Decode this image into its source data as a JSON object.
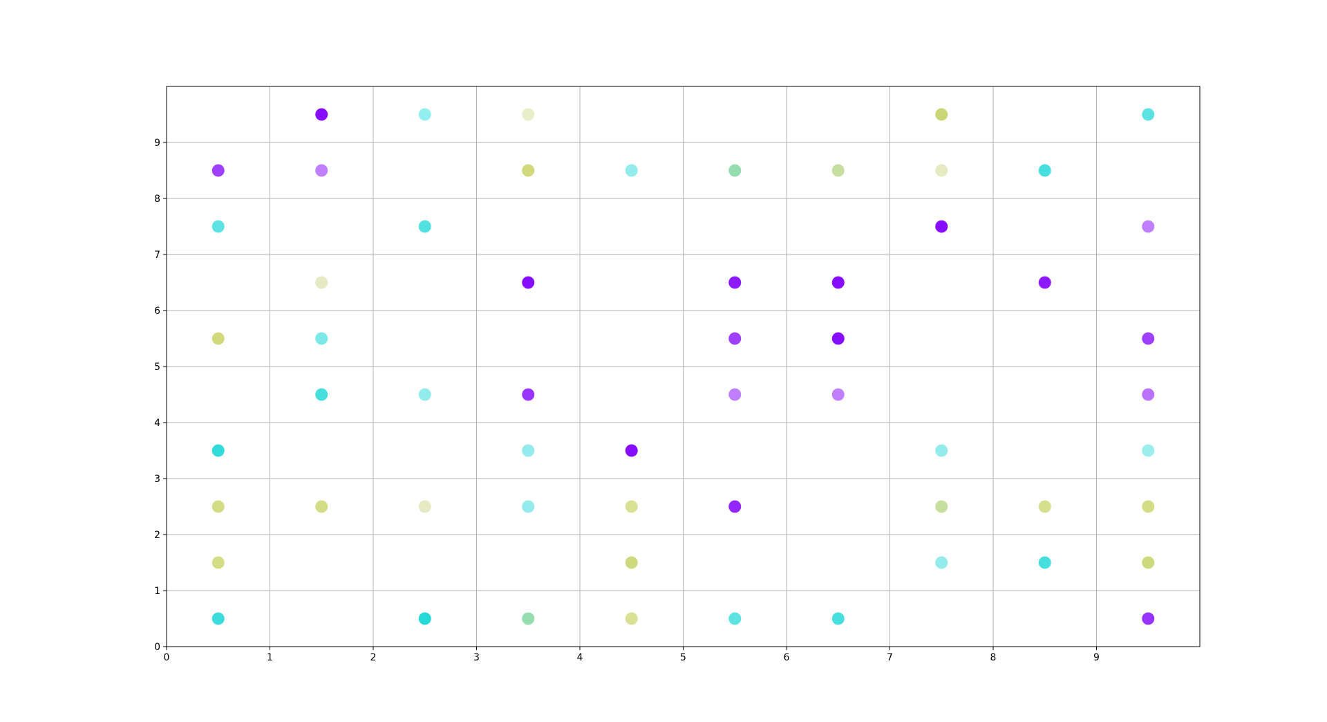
{
  "chart_data": {
    "type": "scatter",
    "title": "",
    "xlabel": "",
    "ylabel": "",
    "xlim": [
      0,
      10
    ],
    "ylim": [
      0,
      10
    ],
    "grid": true,
    "x_ticks": [
      "0",
      "1",
      "2",
      "3",
      "4",
      "5",
      "6",
      "7",
      "8",
      "9"
    ],
    "y_ticks": [
      "0",
      "1",
      "2",
      "3",
      "4",
      "5",
      "6",
      "7",
      "8",
      "9"
    ],
    "points": [
      {
        "x": 1.5,
        "y": 9.5,
        "color": "#8000ff",
        "alpha": 0.95
      },
      {
        "x": 2.5,
        "y": 9.5,
        "color": "#27e0e0",
        "alpha": 0.5
      },
      {
        "x": 3.5,
        "y": 9.5,
        "color": "#c8d47a",
        "alpha": 0.4
      },
      {
        "x": 7.5,
        "y": 9.5,
        "color": "#c4d266",
        "alpha": 0.9
      },
      {
        "x": 9.5,
        "y": 9.5,
        "color": "#27d8d8",
        "alpha": 0.75
      },
      {
        "x": 0.5,
        "y": 8.5,
        "color": "#8000ff",
        "alpha": 0.75
      },
      {
        "x": 1.5,
        "y": 8.5,
        "color": "#8000ff",
        "alpha": 0.5
      },
      {
        "x": 3.5,
        "y": 8.5,
        "color": "#c8d466",
        "alpha": 0.85
      },
      {
        "x": 4.5,
        "y": 8.5,
        "color": "#27d8d8",
        "alpha": 0.5
      },
      {
        "x": 5.5,
        "y": 8.5,
        "color": "#7ad49a",
        "alpha": 0.8
      },
      {
        "x": 6.5,
        "y": 8.5,
        "color": "#b8d686",
        "alpha": 0.8
      },
      {
        "x": 7.5,
        "y": 8.5,
        "color": "#d4dc9a",
        "alpha": 0.6
      },
      {
        "x": 8.5,
        "y": 8.5,
        "color": "#27d8d8",
        "alpha": 0.85
      },
      {
        "x": 0.5,
        "y": 7.5,
        "color": "#27d8d8",
        "alpha": 0.75
      },
      {
        "x": 2.5,
        "y": 7.5,
        "color": "#27d8d8",
        "alpha": 0.8
      },
      {
        "x": 7.5,
        "y": 7.5,
        "color": "#8000ff",
        "alpha": 0.95
      },
      {
        "x": 9.5,
        "y": 7.5,
        "color": "#8000ff",
        "alpha": 0.5
      },
      {
        "x": 1.5,
        "y": 6.5,
        "color": "#d4dc9a",
        "alpha": 0.6
      },
      {
        "x": 3.5,
        "y": 6.5,
        "color": "#8000ff",
        "alpha": 0.95
      },
      {
        "x": 5.5,
        "y": 6.5,
        "color": "#8000ff",
        "alpha": 0.9
      },
      {
        "x": 6.5,
        "y": 6.5,
        "color": "#8000ff",
        "alpha": 0.95
      },
      {
        "x": 8.5,
        "y": 6.5,
        "color": "#8000ff",
        "alpha": 0.9
      },
      {
        "x": 0.5,
        "y": 5.5,
        "color": "#c8d466",
        "alpha": 0.85
      },
      {
        "x": 1.5,
        "y": 5.5,
        "color": "#27d8d8",
        "alpha": 0.6
      },
      {
        "x": 5.5,
        "y": 5.5,
        "color": "#8000ff",
        "alpha": 0.75
      },
      {
        "x": 6.5,
        "y": 5.5,
        "color": "#8000ff",
        "alpha": 0.95
      },
      {
        "x": 9.5,
        "y": 5.5,
        "color": "#8000ff",
        "alpha": 0.75
      },
      {
        "x": 1.5,
        "y": 4.5,
        "color": "#27d8d8",
        "alpha": 0.85
      },
      {
        "x": 2.5,
        "y": 4.5,
        "color": "#27d8d8",
        "alpha": 0.5
      },
      {
        "x": 3.5,
        "y": 4.5,
        "color": "#8000ff",
        "alpha": 0.8
      },
      {
        "x": 5.5,
        "y": 4.5,
        "color": "#8000ff",
        "alpha": 0.5
      },
      {
        "x": 6.5,
        "y": 4.5,
        "color": "#8000ff",
        "alpha": 0.5
      },
      {
        "x": 9.5,
        "y": 4.5,
        "color": "#8000ff",
        "alpha": 0.55
      },
      {
        "x": 0.5,
        "y": 3.5,
        "color": "#27d8d8",
        "alpha": 0.95
      },
      {
        "x": 3.5,
        "y": 3.5,
        "color": "#27d8d8",
        "alpha": 0.5
      },
      {
        "x": 4.5,
        "y": 3.5,
        "color": "#8000ff",
        "alpha": 0.95
      },
      {
        "x": 7.5,
        "y": 3.5,
        "color": "#27d8d8",
        "alpha": 0.5
      },
      {
        "x": 9.5,
        "y": 3.5,
        "color": "#27d8d8",
        "alpha": 0.45
      },
      {
        "x": 0.5,
        "y": 2.5,
        "color": "#c8d466",
        "alpha": 0.8
      },
      {
        "x": 1.5,
        "y": 2.5,
        "color": "#c8d466",
        "alpha": 0.8
      },
      {
        "x": 2.5,
        "y": 2.5,
        "color": "#d4dc9a",
        "alpha": 0.6
      },
      {
        "x": 3.5,
        "y": 2.5,
        "color": "#27d8d8",
        "alpha": 0.5
      },
      {
        "x": 4.5,
        "y": 2.5,
        "color": "#c8d466",
        "alpha": 0.7
      },
      {
        "x": 5.5,
        "y": 2.5,
        "color": "#8000ff",
        "alpha": 0.85
      },
      {
        "x": 7.5,
        "y": 2.5,
        "color": "#b8d686",
        "alpha": 0.8
      },
      {
        "x": 8.5,
        "y": 2.5,
        "color": "#c8d466",
        "alpha": 0.75
      },
      {
        "x": 9.5,
        "y": 2.5,
        "color": "#c8d466",
        "alpha": 0.8
      },
      {
        "x": 0.5,
        "y": 1.5,
        "color": "#c8d466",
        "alpha": 0.8
      },
      {
        "x": 4.5,
        "y": 1.5,
        "color": "#c4d266",
        "alpha": 0.85
      },
      {
        "x": 7.5,
        "y": 1.5,
        "color": "#27d8d8",
        "alpha": 0.5
      },
      {
        "x": 8.5,
        "y": 1.5,
        "color": "#27d8d8",
        "alpha": 0.85
      },
      {
        "x": 9.5,
        "y": 1.5,
        "color": "#c4d266",
        "alpha": 0.85
      },
      {
        "x": 0.5,
        "y": 0.5,
        "color": "#27d8d8",
        "alpha": 0.9
      },
      {
        "x": 2.5,
        "y": 0.5,
        "color": "#27d8d8",
        "alpha": 1.0
      },
      {
        "x": 3.5,
        "y": 0.5,
        "color": "#7ad49a",
        "alpha": 0.8
      },
      {
        "x": 4.5,
        "y": 0.5,
        "color": "#c8d466",
        "alpha": 0.7
      },
      {
        "x": 5.5,
        "y": 0.5,
        "color": "#27d8d8",
        "alpha": 0.75
      },
      {
        "x": 6.5,
        "y": 0.5,
        "color": "#27d8d8",
        "alpha": 0.85
      },
      {
        "x": 9.5,
        "y": 0.5,
        "color": "#8000ff",
        "alpha": 0.8
      }
    ],
    "colors": {
      "grid": "#b0b0b0",
      "axes": "#000000",
      "purple": "#8000ff",
      "cyan": "#27d8d8",
      "yellow_green": "#c8d466",
      "green": "#7ad49a"
    }
  }
}
